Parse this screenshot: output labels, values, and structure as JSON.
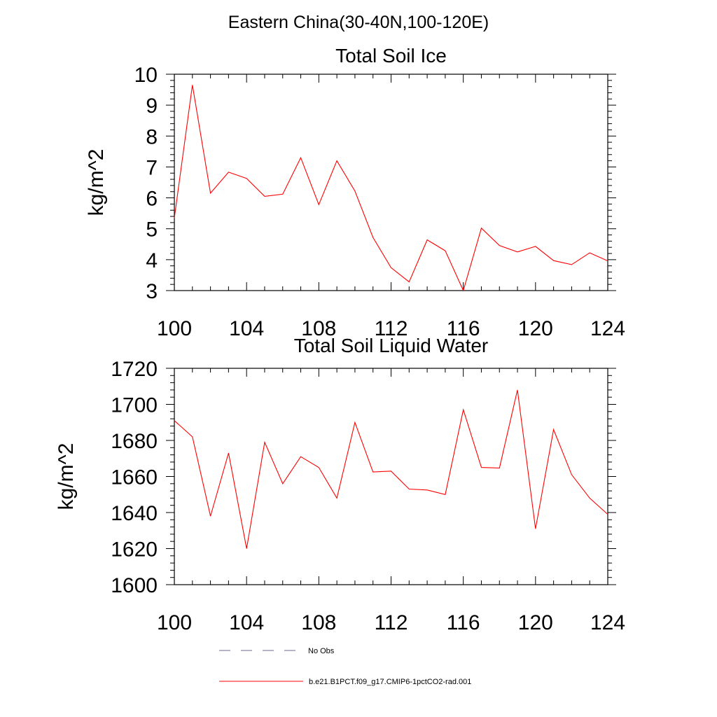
{
  "figure": {
    "title": "Eastern China(30-40N,100-120E)"
  },
  "legend": {
    "entries": [
      {
        "label": "No Obs",
        "style": "dashed",
        "color": "#6a6a8c"
      },
      {
        "label": "b.e21.B1PCT.f09_g17.CMIP6-1pctCO2-rad.001",
        "style": "solid",
        "color": "#ff0000"
      }
    ]
  },
  "chart_data": [
    {
      "type": "line",
      "title": "Total Soil Ice",
      "xlabel": "",
      "ylabel": "kg/m^2",
      "xlim": [
        100,
        124
      ],
      "ylim": [
        3,
        10
      ],
      "xticks": [
        100,
        104,
        108,
        112,
        116,
        120,
        124
      ],
      "yticks": [
        3,
        4,
        5,
        6,
        7,
        8,
        9,
        10
      ],
      "grid": false,
      "series": [
        {
          "name": "b.e21.B1PCT.f09_g17.CMIP6-1pctCO2-rad.001",
          "color": "#ff0000",
          "x": [
            100,
            101,
            102,
            103,
            104,
            105,
            106,
            107,
            108,
            109,
            110,
            111,
            112,
            113,
            114,
            115,
            116,
            117,
            118,
            119,
            120,
            121,
            122,
            123,
            124
          ],
          "y": [
            5.35,
            9.65,
            6.15,
            6.83,
            6.63,
            6.05,
            6.12,
            7.3,
            5.78,
            7.2,
            6.22,
            4.72,
            3.74,
            3.28,
            4.64,
            4.29,
            3.0,
            5.02,
            4.46,
            4.25,
            4.43,
            3.97,
            3.84,
            4.22,
            3.96
          ]
        }
      ]
    },
    {
      "type": "line",
      "title": "Total Soil Liquid Water",
      "xlabel": "",
      "ylabel": "kg/m^2",
      "xlim": [
        100,
        124
      ],
      "ylim": [
        1600,
        1720
      ],
      "xticks": [
        100,
        104,
        108,
        112,
        116,
        120,
        124
      ],
      "yticks": [
        1600,
        1620,
        1640,
        1660,
        1680,
        1700,
        1720
      ],
      "grid": false,
      "series": [
        {
          "name": "b.e21.B1PCT.f09_g17.CMIP6-1pctCO2-rad.001",
          "color": "#ff0000",
          "x": [
            100,
            101,
            102,
            103,
            104,
            105,
            106,
            107,
            108,
            109,
            110,
            111,
            112,
            113,
            114,
            115,
            116,
            117,
            118,
            119,
            120,
            121,
            122,
            123,
            124
          ],
          "y": [
            1691,
            1682,
            1638,
            1673,
            1620,
            1679,
            1656,
            1671,
            1665,
            1648,
            1690,
            1662.5,
            1663,
            1653,
            1652.5,
            1650,
            1697,
            1665,
            1664.7,
            1708,
            1631,
            1686,
            1661,
            1648,
            1639
          ]
        }
      ]
    }
  ]
}
